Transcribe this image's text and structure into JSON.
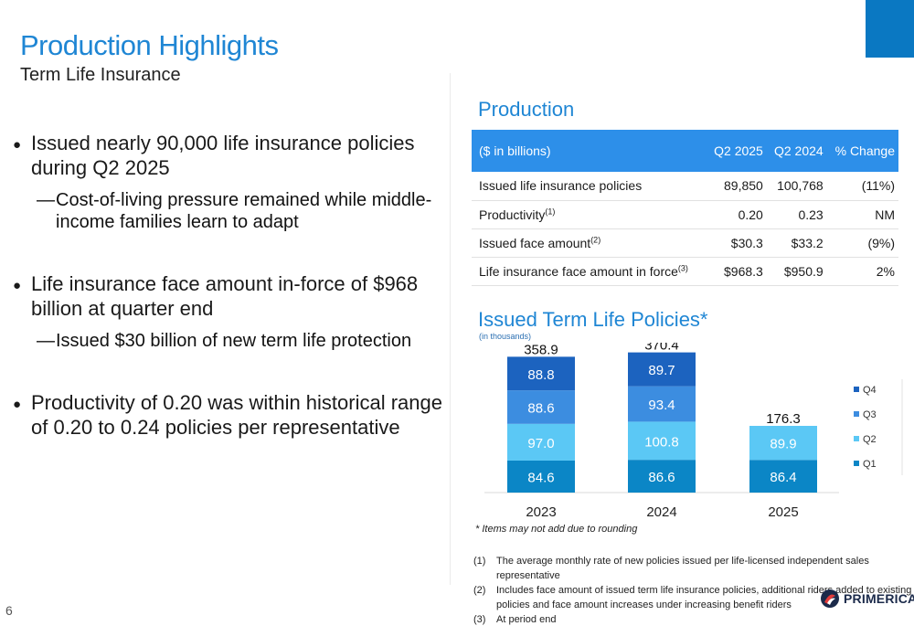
{
  "header": {
    "title": "Production Highlights",
    "subtitle": "Term Life Insurance"
  },
  "bullets": [
    {
      "text": "Issued nearly 90,000 life insurance policies during Q2 2025",
      "subs": [
        "Cost-of-living pressure remained while middle-income families learn to adapt"
      ]
    },
    {
      "text": "Life insurance face amount in-force of $968 billion at quarter end",
      "subs": [
        "Issued $30 billion of new term life protection"
      ]
    },
    {
      "text": "Productivity of 0.20 was within historical range of 0.20 to 0.24 policies per representative",
      "subs": []
    }
  ],
  "production": {
    "heading": "Production",
    "columns": [
      "($ in billions)",
      "Q2 2025",
      "Q2 2024",
      "% Change"
    ],
    "rows": [
      {
        "label": "Issued life insurance policies",
        "sup": "",
        "values": [
          "89,850",
          "100,768",
          "(11%)"
        ]
      },
      {
        "label": "Productivity",
        "sup": "(1)",
        "values": [
          "0.20",
          "0.23",
          "NM"
        ]
      },
      {
        "label": "Issued face amount",
        "sup": "(2)",
        "values": [
          "$30.3",
          "$33.2",
          "(9%)"
        ]
      },
      {
        "label": "Life insurance face amount in force",
        "sup": "(3)",
        "values": [
          "$968.3",
          "$950.9",
          "2%"
        ]
      }
    ]
  },
  "chart": {
    "title": "Issued Term Life Policies*",
    "subtitle": "(in thousands)",
    "footnote": "* Items may not add due to rounding"
  },
  "chart_data": {
    "type": "bar",
    "stacked": true,
    "title": "Issued Term Life Policies*",
    "subtitle": "(in thousands)",
    "categories": [
      "2023",
      "2024",
      "2025"
    ],
    "series": [
      {
        "name": "Q1",
        "values": [
          84.6,
          86.6,
          86.4
        ],
        "color": "#0b86c6"
      },
      {
        "name": "Q2",
        "values": [
          97.0,
          100.8,
          89.9
        ],
        "color": "#5bc8f5"
      },
      {
        "name": "Q3",
        "values": [
          88.6,
          93.4,
          null
        ],
        "color": "#3c8de0"
      },
      {
        "name": "Q4",
        "values": [
          88.8,
          89.7,
          null
        ],
        "color": "#1c63bf"
      }
    ],
    "totals": [
      "358.9",
      "370.4",
      "176.3"
    ],
    "legend_position": "right",
    "legend_order": [
      "Q4",
      "Q3",
      "Q2",
      "Q1"
    ],
    "ylim": [
      0,
      400
    ],
    "grid": false
  },
  "footnotes": [
    {
      "n": "(1)",
      "text": "The average monthly rate of new policies issued per life-licensed independent sales representative"
    },
    {
      "n": "(2)",
      "text": "Includes face amount of issued term life insurance policies, additional riders added to existing policies and face amount increases under increasing benefit riders"
    },
    {
      "n": "(3)",
      "text": "At period end"
    }
  ],
  "page_number": "6",
  "logo": {
    "text": "PRIMERICA",
    "mark": "®"
  },
  "colors": {
    "accent": "#1f86d4",
    "header_fill": "#2d8fe9",
    "corner_block": "#0a78c2"
  }
}
